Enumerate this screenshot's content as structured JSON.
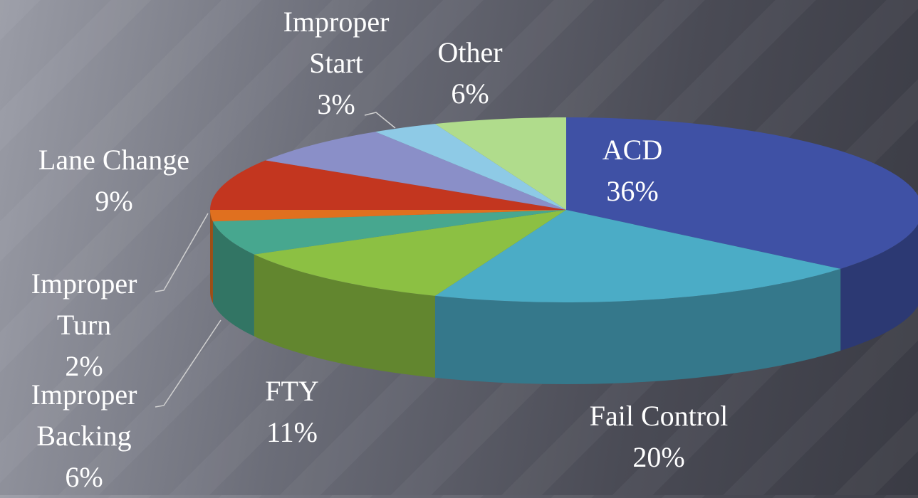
{
  "chart_data": {
    "type": "pie",
    "categories": [
      "ACD",
      "Fail Control",
      "FTY",
      "Improper Backing",
      "Improper Turn",
      "Lane Change",
      null,
      "Improper Start",
      "Other"
    ],
    "values": [
      36,
      20,
      11,
      6,
      2,
      9,
      7,
      3,
      6
    ],
    "value_labels": [
      "36%",
      "20%",
      "11%",
      "6%",
      "2%",
      "9%",
      null,
      "3%",
      "6%"
    ],
    "colors": [
      "#3f51a5",
      "#4bacc6",
      "#8cc043",
      "#47a78f",
      "#e0701f",
      "#c3361f",
      "#8a8fc8",
      "#8ecae6",
      "#b0dc8c"
    ]
  }
}
